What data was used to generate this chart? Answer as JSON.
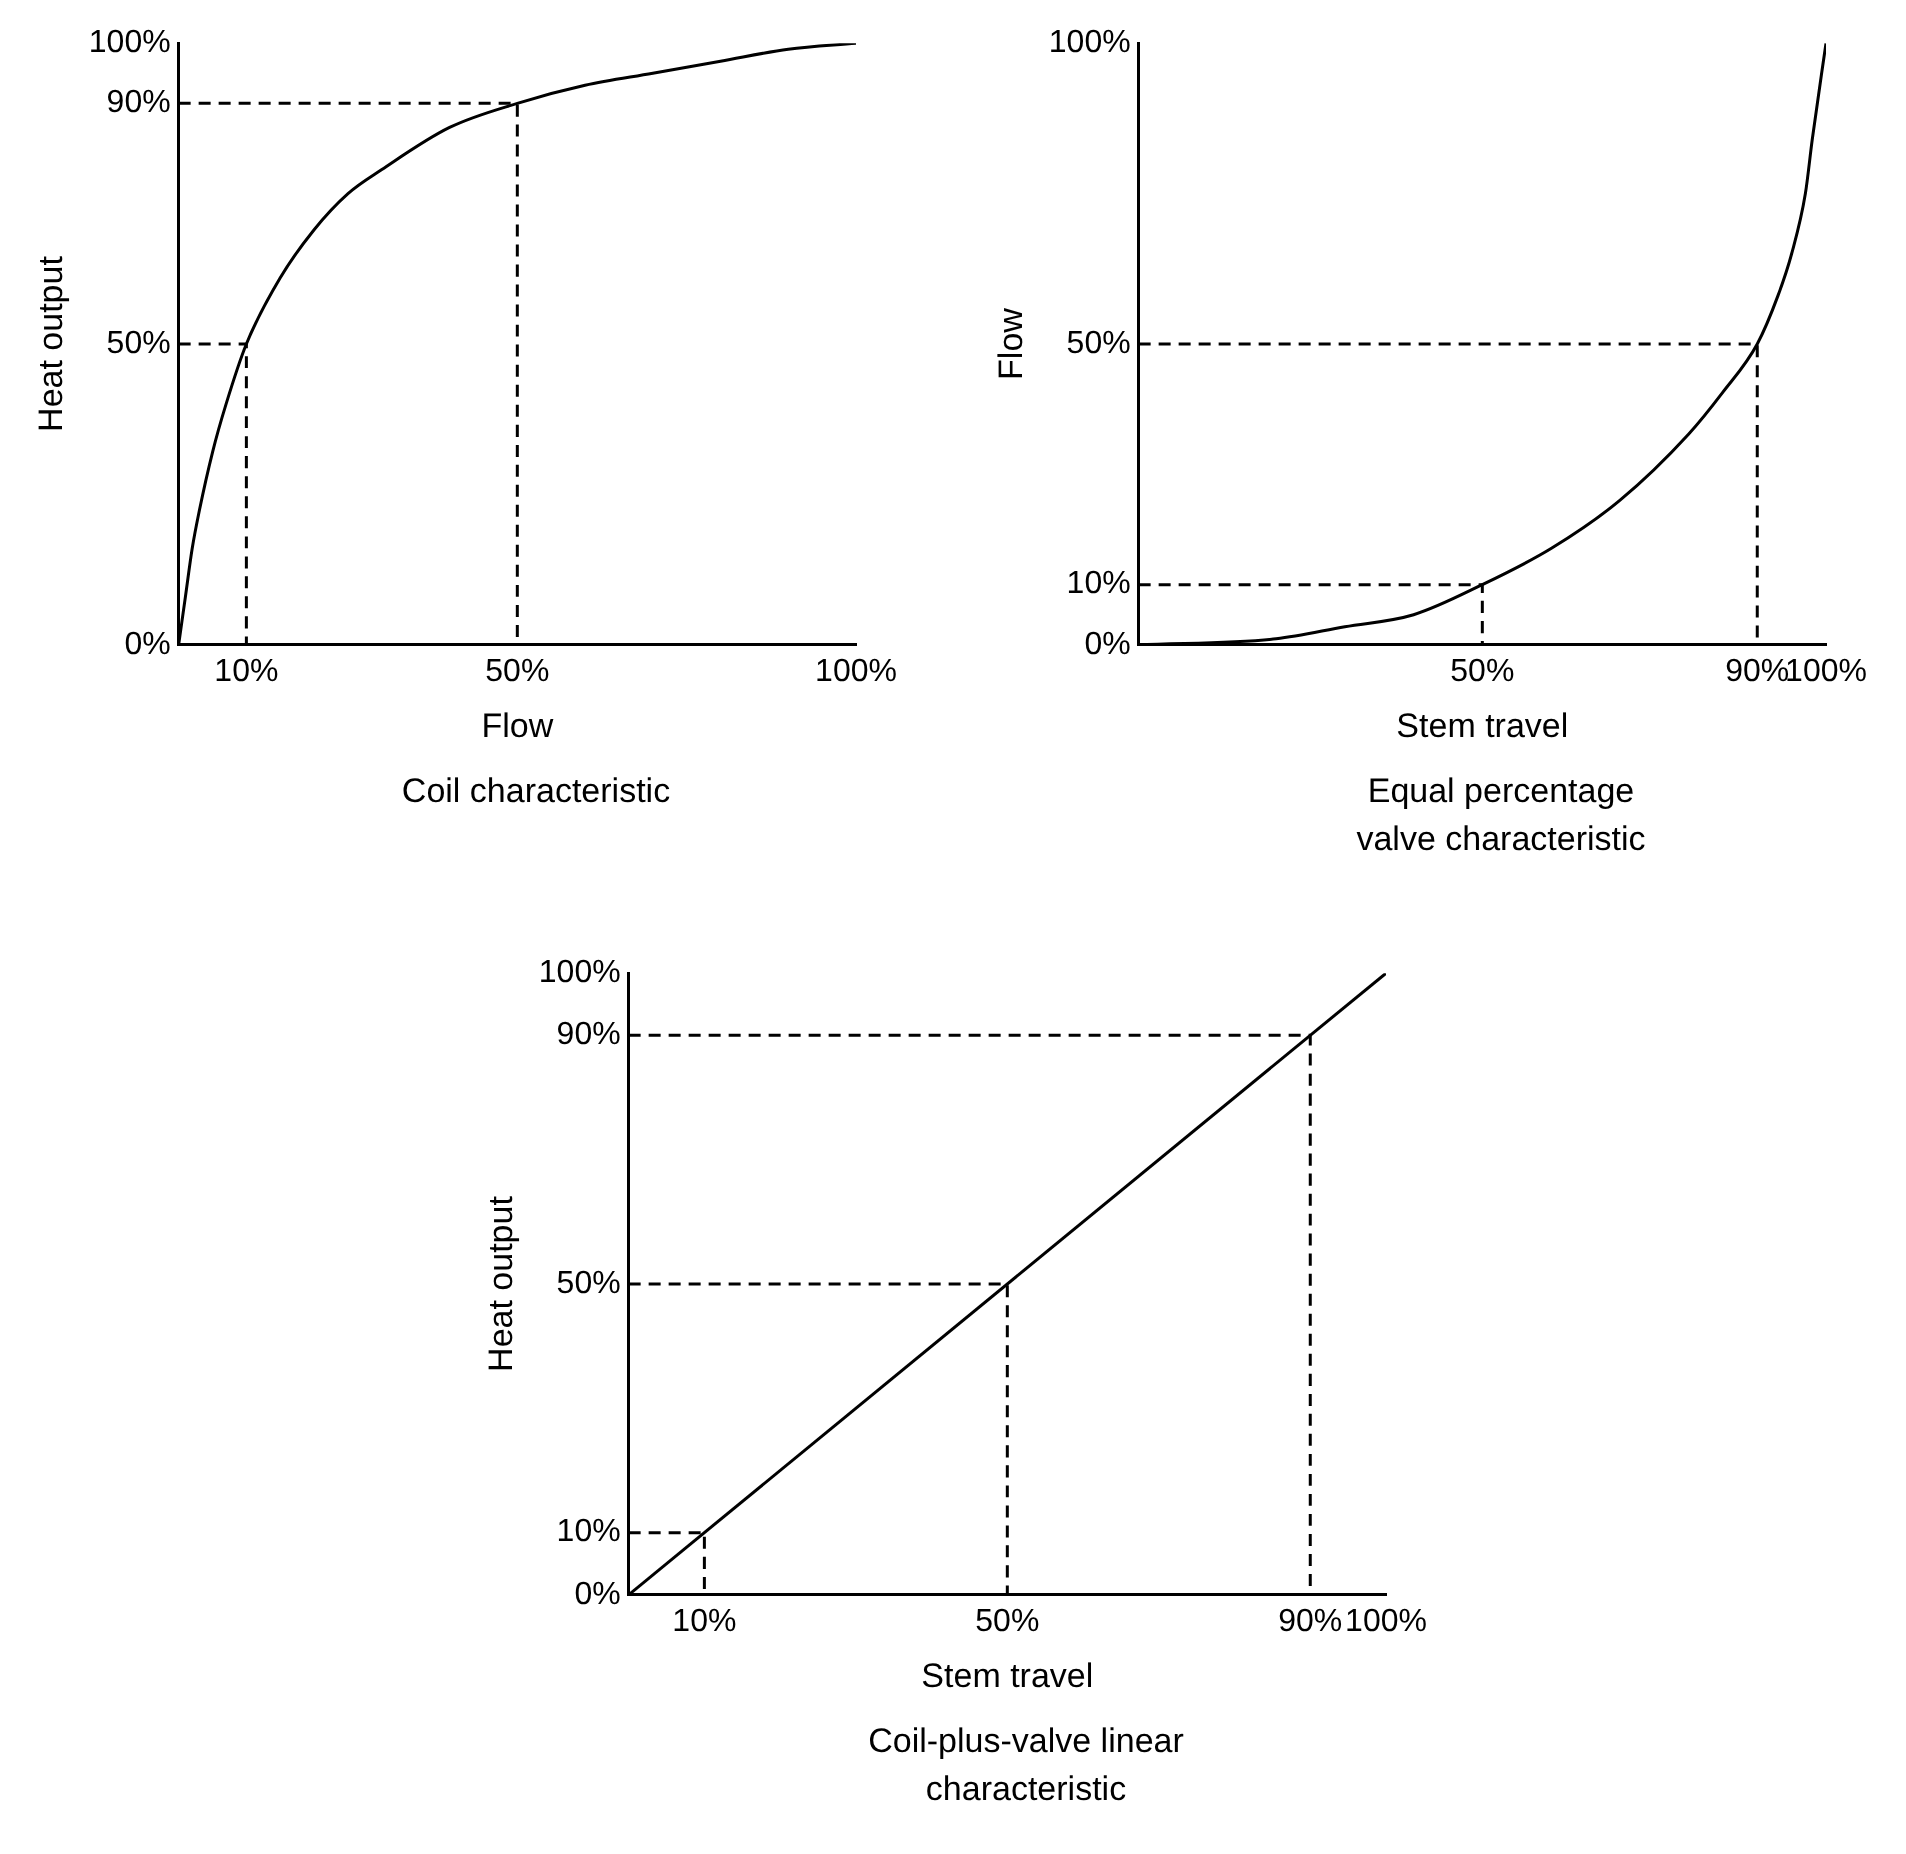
{
  "chart_data": [
    {
      "type": "line",
      "title": "Coil characteristic",
      "xlabel": "Flow",
      "ylabel": "Heat output",
      "xlim": [
        0,
        100
      ],
      "ylim": [
        0,
        100
      ],
      "xticks": [
        {
          "value": 10,
          "label": "10%"
        },
        {
          "value": 50,
          "label": "50%"
        },
        {
          "value": 100,
          "label": "100%"
        }
      ],
      "yticks": [
        {
          "value": 0,
          "label": "0%"
        },
        {
          "value": 50,
          "label": "50%"
        },
        {
          "value": 90,
          "label": "90%"
        },
        {
          "value": 100,
          "label": "100%"
        }
      ],
      "grid": false,
      "legend": false,
      "series": [
        {
          "color": "#000000",
          "line_style": "solid",
          "x": [
            0,
            1,
            2,
            3,
            5,
            7,
            10,
            15,
            20,
            25,
            30,
            40,
            50,
            60,
            70,
            80,
            90,
            100
          ],
          "values": [
            0,
            8,
            16,
            22,
            32,
            40,
            50,
            61,
            69,
            75,
            79,
            86,
            90,
            93,
            95,
            97,
            99,
            100
          ]
        },
        {
          "color": "#000000",
          "line_style": "dashed",
          "x": [
            0,
            10,
            10
          ],
          "values": [
            50,
            50,
            0
          ]
        },
        {
          "color": "#000000",
          "line_style": "dashed",
          "x": [
            0,
            50,
            50
          ],
          "values": [
            90,
            90,
            0
          ]
        }
      ]
    },
    {
      "type": "line",
      "title": "Equal percentage valve characteristic",
      "xlabel": "Stem travel",
      "ylabel": "Flow",
      "xlim": [
        0,
        100
      ],
      "ylim": [
        0,
        100
      ],
      "xticks": [
        {
          "value": 50,
          "label": "50%"
        },
        {
          "value": 90,
          "label": "90%"
        },
        {
          "value": 100,
          "label": "100%"
        }
      ],
      "yticks": [
        {
          "value": 0,
          "label": "0%"
        },
        {
          "value": 10,
          "label": "10%"
        },
        {
          "value": 50,
          "label": "50%"
        },
        {
          "value": 100,
          "label": "100%"
        }
      ],
      "grid": false,
      "legend": false,
      "series": [
        {
          "color": "#000000",
          "line_style": "solid",
          "x": [
            0,
            20,
            30,
            40,
            50,
            60,
            70,
            80,
            85,
            90,
            93,
            95,
            97,
            98,
            100
          ],
          "values": [
            0,
            1,
            3,
            5,
            10,
            16,
            24,
            35,
            42,
            50,
            58,
            65,
            75,
            84,
            100
          ]
        },
        {
          "color": "#000000",
          "line_style": "dashed",
          "x": [
            0,
            50,
            50
          ],
          "values": [
            10,
            10,
            0
          ]
        },
        {
          "color": "#000000",
          "line_style": "dashed",
          "x": [
            0,
            90,
            90
          ],
          "values": [
            50,
            50,
            0
          ]
        }
      ]
    },
    {
      "type": "line",
      "title": "Coil-plus-valve linear characteristic",
      "xlabel": "Stem travel",
      "ylabel": "Heat output",
      "xlim": [
        0,
        100
      ],
      "ylim": [
        0,
        100
      ],
      "xticks": [
        {
          "value": 10,
          "label": "10%"
        },
        {
          "value": 50,
          "label": "50%"
        },
        {
          "value": 90,
          "label": "90%"
        },
        {
          "value": 100,
          "label": "100%"
        }
      ],
      "yticks": [
        {
          "value": 0,
          "label": "0%"
        },
        {
          "value": 10,
          "label": "10%"
        },
        {
          "value": 50,
          "label": "50%"
        },
        {
          "value": 90,
          "label": "90%"
        },
        {
          "value": 100,
          "label": "100%"
        }
      ],
      "grid": false,
      "legend": false,
      "series": [
        {
          "color": "#000000",
          "line_style": "solid",
          "x": [
            0,
            100
          ],
          "values": [
            0,
            100
          ]
        },
        {
          "color": "#000000",
          "line_style": "dashed",
          "x": [
            0,
            10,
            10
          ],
          "values": [
            10,
            10,
            0
          ]
        },
        {
          "color": "#000000",
          "line_style": "dashed",
          "x": [
            0,
            50,
            50
          ],
          "values": [
            50,
            50,
            0
          ]
        },
        {
          "color": "#000000",
          "line_style": "dashed",
          "x": [
            0,
            90,
            90
          ],
          "values": [
            90,
            90,
            0
          ]
        }
      ]
    }
  ]
}
